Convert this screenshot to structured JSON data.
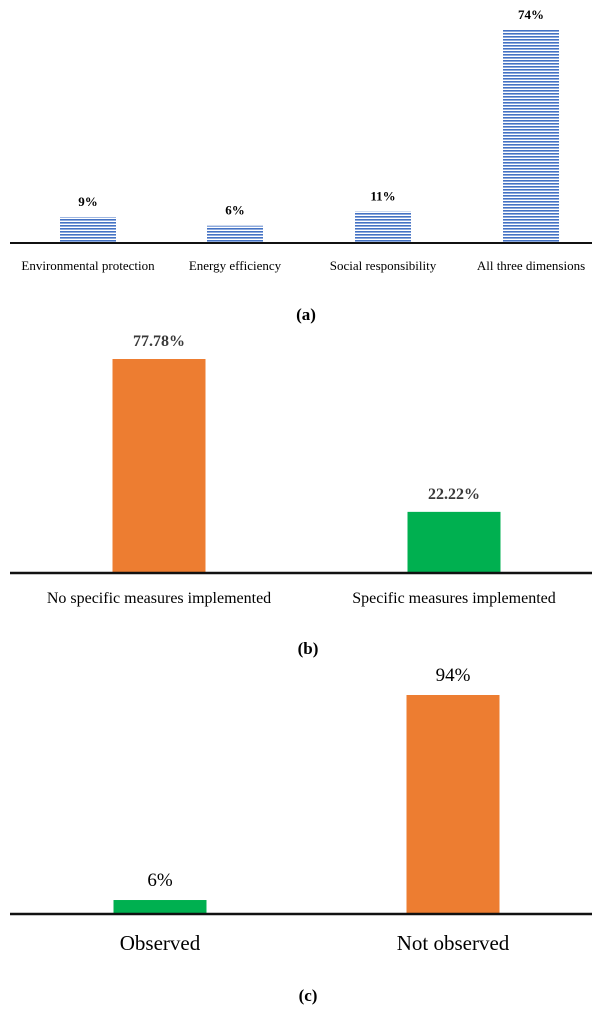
{
  "chart_data": [
    {
      "type": "bar",
      "categories": [
        "Environmental protection",
        "Energy efficiency",
        "Social responsibility",
        "All three dimensions"
      ],
      "values": [
        9,
        6,
        11,
        74
      ],
      "labels": [
        "9%",
        "6%",
        "11%",
        "74%"
      ],
      "ylim": [
        0,
        74
      ],
      "bar_fill": "horizontal-stripes",
      "colors": [
        "#4472c4"
      ],
      "caption": "(a)"
    },
    {
      "type": "bar",
      "categories": [
        "No specific measures implemented",
        "Specific measures implemented"
      ],
      "values": [
        77.78,
        22.22
      ],
      "labels": [
        "77.78%",
        "22.22%"
      ],
      "ylim": [
        0,
        77.78
      ],
      "colors": [
        "#ed7d31",
        "#00b050"
      ],
      "caption": "(b)"
    },
    {
      "type": "bar",
      "categories": [
        "Observed",
        "Not observed"
      ],
      "values": [
        6,
        94
      ],
      "labels": [
        "6%",
        "94%"
      ],
      "ylim": [
        0,
        94
      ],
      "colors": [
        "#00b050",
        "#ed7d31"
      ],
      "caption": "(c)"
    }
  ]
}
